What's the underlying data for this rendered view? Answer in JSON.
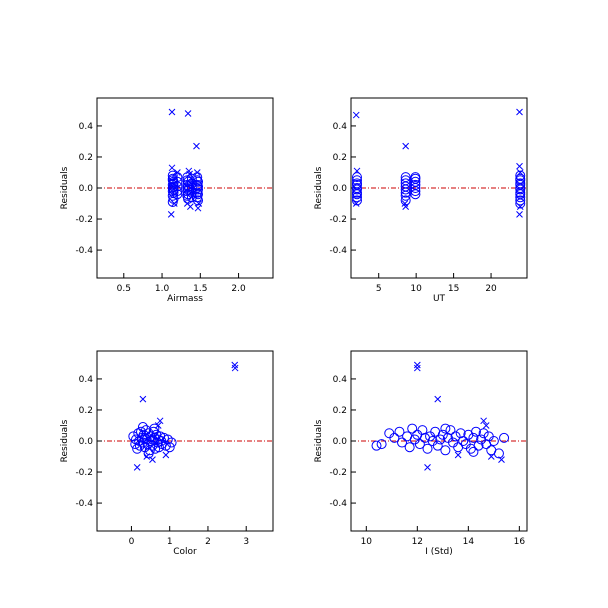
{
  "chart_data": [
    {
      "type": "scatter",
      "xlabel": "Airmass",
      "ylabel": "Residuals",
      "xlim": [
        0.15,
        2.45
      ],
      "ylim": [
        -0.58,
        0.58
      ],
      "xticks": [
        0.5,
        1.0,
        1.5,
        2.0
      ],
      "xtick_labels": [
        "0.5",
        "1.0",
        "1.5",
        "2.0"
      ],
      "yticks": [
        -0.4,
        -0.2,
        0.0,
        0.2,
        0.4
      ],
      "ytick_labels": [
        "-0.4",
        "-0.2",
        "0.0",
        "0.2",
        "0.4"
      ],
      "zero_line_color": "#cc0000",
      "marker_color": "#0000ff",
      "series": [
        {
          "marker": "circle",
          "points": [
            [
              1.14,
              0.08
            ],
            [
              1.14,
              0.06
            ],
            [
              1.14,
              0.05
            ],
            [
              1.15,
              0.04
            ],
            [
              1.15,
              0.03
            ],
            [
              1.14,
              0.02
            ],
            [
              1.15,
              0.01
            ],
            [
              1.14,
              0.0
            ],
            [
              1.15,
              -0.01
            ],
            [
              1.14,
              -0.02
            ],
            [
              1.15,
              -0.03
            ],
            [
              1.14,
              -0.05
            ],
            [
              1.15,
              -0.07
            ],
            [
              1.14,
              -0.09
            ],
            [
              1.2,
              0.07
            ],
            [
              1.2,
              0.04
            ],
            [
              1.2,
              0.01
            ],
            [
              1.2,
              -0.02
            ],
            [
              1.2,
              -0.04
            ],
            [
              1.33,
              0.07
            ],
            [
              1.33,
              0.05
            ],
            [
              1.34,
              0.04
            ],
            [
              1.33,
              0.02
            ],
            [
              1.34,
              0.01
            ],
            [
              1.33,
              0.0
            ],
            [
              1.34,
              -0.01
            ],
            [
              1.33,
              -0.02
            ],
            [
              1.34,
              -0.04
            ],
            [
              1.33,
              -0.05
            ],
            [
              1.34,
              -0.07
            ],
            [
              1.39,
              0.06
            ],
            [
              1.39,
              0.03
            ],
            [
              1.39,
              0.0
            ],
            [
              1.39,
              -0.03
            ],
            [
              1.39,
              -0.06
            ],
            [
              1.46,
              0.07
            ],
            [
              1.46,
              0.05
            ],
            [
              1.47,
              0.04
            ],
            [
              1.46,
              0.02
            ],
            [
              1.47,
              0.01
            ],
            [
              1.46,
              0.0
            ],
            [
              1.47,
              -0.01
            ],
            [
              1.46,
              -0.03
            ],
            [
              1.47,
              -0.04
            ],
            [
              1.46,
              -0.06
            ],
            [
              1.47,
              -0.08
            ]
          ]
        },
        {
          "marker": "x",
          "points": [
            [
              1.13,
              0.49
            ],
            [
              1.13,
              0.13
            ],
            [
              1.12,
              -0.17
            ],
            [
              1.2,
              0.1
            ],
            [
              1.16,
              -0.1
            ],
            [
              1.34,
              0.48
            ],
            [
              1.35,
              0.11
            ],
            [
              1.33,
              -0.1
            ],
            [
              1.37,
              -0.12
            ],
            [
              1.36,
              0.09
            ],
            [
              1.45,
              0.27
            ],
            [
              1.47,
              -0.13
            ],
            [
              1.48,
              -0.1
            ],
            [
              1.46,
              0.1
            ]
          ]
        }
      ]
    },
    {
      "type": "scatter",
      "xlabel": "UT",
      "ylabel": "Residuals",
      "xlim": [
        1.3,
        24.8
      ],
      "ylim": [
        -0.58,
        0.58
      ],
      "xticks": [
        5,
        10,
        15,
        20
      ],
      "xtick_labels": [
        "5",
        "10",
        "15",
        "20"
      ],
      "yticks": [
        -0.4,
        -0.2,
        0.0,
        0.2,
        0.4
      ],
      "ytick_labels": [
        "-0.4",
        "-0.2",
        "0.0",
        "0.2",
        "0.4"
      ],
      "zero_line_color": "#cc0000",
      "marker_color": "#0000ff",
      "series": [
        {
          "marker": "circle",
          "points": [
            [
              2.1,
              0.07
            ],
            [
              2.1,
              0.05
            ],
            [
              2.1,
              0.03
            ],
            [
              2.1,
              0.02
            ],
            [
              2.1,
              0.0
            ],
            [
              2.1,
              -0.01
            ],
            [
              2.1,
              -0.03
            ],
            [
              2.1,
              -0.04
            ],
            [
              2.1,
              -0.06
            ],
            [
              2.1,
              -0.08
            ],
            [
              8.6,
              0.07
            ],
            [
              8.6,
              0.05
            ],
            [
              8.6,
              0.03
            ],
            [
              8.6,
              0.01
            ],
            [
              8.6,
              -0.01
            ],
            [
              8.6,
              -0.03
            ],
            [
              8.6,
              -0.05
            ],
            [
              8.6,
              -0.08
            ],
            [
              9.9,
              0.07
            ],
            [
              9.9,
              0.06
            ],
            [
              9.9,
              0.04
            ],
            [
              9.9,
              0.02
            ],
            [
              9.9,
              0.0
            ],
            [
              9.9,
              -0.02
            ],
            [
              9.9,
              -0.04
            ],
            [
              23.9,
              0.08
            ],
            [
              23.9,
              0.06
            ],
            [
              23.9,
              0.05
            ],
            [
              23.9,
              0.03
            ],
            [
              23.9,
              0.02
            ],
            [
              23.9,
              0.0
            ],
            [
              23.9,
              -0.01
            ],
            [
              23.9,
              -0.03
            ],
            [
              23.9,
              -0.04
            ],
            [
              23.9,
              -0.06
            ],
            [
              23.9,
              -0.08
            ],
            [
              23.9,
              -0.1
            ]
          ]
        },
        {
          "marker": "x",
          "points": [
            [
              2.0,
              0.47
            ],
            [
              2.1,
              0.11
            ],
            [
              2.0,
              -0.1
            ],
            [
              8.6,
              0.27
            ],
            [
              8.6,
              -0.12
            ],
            [
              8.5,
              -0.1
            ],
            [
              23.8,
              0.49
            ],
            [
              23.8,
              0.14
            ],
            [
              23.8,
              -0.17
            ],
            [
              23.9,
              0.1
            ],
            [
              23.9,
              -0.12
            ]
          ]
        }
      ]
    },
    {
      "type": "scatter",
      "xlabel": "Color",
      "ylabel": "Residuals",
      "xlim": [
        -0.9,
        3.7
      ],
      "ylim": [
        -0.58,
        0.58
      ],
      "xticks": [
        0,
        1,
        2,
        3
      ],
      "xtick_labels": [
        "0",
        "1",
        "2",
        "3"
      ],
      "yticks": [
        -0.4,
        -0.2,
        0.0,
        0.2,
        0.4
      ],
      "ytick_labels": [
        "-0.4",
        "-0.2",
        "0.0",
        "0.2",
        "0.4"
      ],
      "zero_line_color": "#cc0000",
      "marker_color": "#0000ff",
      "series": [
        {
          "marker": "circle",
          "points": [
            [
              0.05,
              0.03
            ],
            [
              0.1,
              -0.02
            ],
            [
              0.12,
              0.01
            ],
            [
              0.15,
              -0.05
            ],
            [
              0.18,
              0.05
            ],
            [
              0.2,
              0.0
            ],
            [
              0.22,
              -0.03
            ],
            [
              0.25,
              0.06
            ],
            [
              0.28,
              0.02
            ],
            [
              0.3,
              -0.01
            ],
            [
              0.32,
              0.04
            ],
            [
              0.35,
              -0.04
            ],
            [
              0.38,
              0.07
            ],
            [
              0.4,
              0.01
            ],
            [
              0.42,
              -0.02
            ],
            [
              0.45,
              0.05
            ],
            [
              0.48,
              -0.06
            ],
            [
              0.5,
              0.03
            ],
            [
              0.52,
              0.0
            ],
            [
              0.55,
              -0.03
            ],
            [
              0.58,
              0.06
            ],
            [
              0.6,
              0.02
            ],
            [
              0.62,
              -0.05
            ],
            [
              0.65,
              0.04
            ],
            [
              0.68,
              -0.01
            ],
            [
              0.7,
              0.01
            ],
            [
              0.72,
              -0.04
            ],
            [
              0.75,
              0.03
            ],
            [
              0.78,
              0.0
            ],
            [
              0.8,
              -0.02
            ],
            [
              0.85,
              0.02
            ],
            [
              0.9,
              -0.03
            ],
            [
              0.95,
              0.01
            ],
            [
              1.0,
              -0.04
            ],
            [
              1.05,
              -0.01
            ],
            [
              0.3,
              0.09
            ],
            [
              0.45,
              -0.08
            ],
            [
              0.6,
              0.08
            ],
            [
              0.35,
              0.02
            ],
            [
              0.55,
              0.01
            ]
          ]
        },
        {
          "marker": "x",
          "points": [
            [
              0.3,
              0.27
            ],
            [
              0.75,
              0.13
            ],
            [
              0.15,
              -0.17
            ],
            [
              0.4,
              -0.1
            ],
            [
              0.55,
              -0.12
            ],
            [
              0.7,
              0.1
            ],
            [
              0.9,
              -0.09
            ],
            [
              2.7,
              0.49
            ],
            [
              2.71,
              0.47
            ]
          ]
        }
      ]
    },
    {
      "type": "scatter",
      "xlabel": "I (Std)",
      "ylabel": "Residuals",
      "xlim": [
        9.4,
        16.3
      ],
      "ylim": [
        -0.58,
        0.58
      ],
      "xticks": [
        10,
        12,
        14,
        16
      ],
      "xtick_labels": [
        "10",
        "12",
        "14",
        "16"
      ],
      "yticks": [
        -0.4,
        -0.2,
        0.0,
        0.2,
        0.4
      ],
      "ytick_labels": [
        "-0.4",
        "-0.2",
        "0.0",
        "0.2",
        "0.4"
      ],
      "zero_line_color": "#cc0000",
      "marker_color": "#0000ff",
      "series": [
        {
          "marker": "circle",
          "points": [
            [
              10.4,
              -0.03
            ],
            [
              10.6,
              -0.02
            ],
            [
              10.9,
              0.05
            ],
            [
              11.1,
              0.02
            ],
            [
              11.3,
              0.06
            ],
            [
              11.4,
              -0.01
            ],
            [
              11.6,
              0.03
            ],
            [
              11.7,
              -0.04
            ],
            [
              11.9,
              0.01
            ],
            [
              12.0,
              0.04
            ],
            [
              12.1,
              -0.02
            ],
            [
              12.2,
              0.07
            ],
            [
              12.3,
              0.02
            ],
            [
              12.4,
              -0.05
            ],
            [
              12.5,
              0.03
            ],
            [
              12.6,
              0.0
            ],
            [
              12.7,
              0.06
            ],
            [
              12.8,
              -0.03
            ],
            [
              12.9,
              0.01
            ],
            [
              13.0,
              0.04
            ],
            [
              13.1,
              -0.06
            ],
            [
              13.2,
              0.02
            ],
            [
              13.3,
              0.07
            ],
            [
              13.4,
              -0.01
            ],
            [
              13.5,
              0.03
            ],
            [
              13.6,
              -0.04
            ],
            [
              13.7,
              0.05
            ],
            [
              13.8,
              0.0
            ],
            [
              13.9,
              -0.02
            ],
            [
              14.0,
              0.04
            ],
            [
              14.1,
              -0.05
            ],
            [
              14.2,
              0.02
            ],
            [
              14.3,
              0.06
            ],
            [
              14.4,
              -0.03
            ],
            [
              14.5,
              0.01
            ],
            [
              14.6,
              0.05
            ],
            [
              14.7,
              -0.02
            ],
            [
              14.8,
              0.03
            ],
            [
              14.9,
              -0.06
            ],
            [
              15.0,
              0.0
            ],
            [
              15.2,
              -0.08
            ],
            [
              15.4,
              0.02
            ],
            [
              11.8,
              0.08
            ],
            [
              13.1,
              0.08
            ],
            [
              14.2,
              -0.07
            ]
          ]
        },
        {
          "marker": "x",
          "points": [
            [
              12.0,
              0.49
            ],
            [
              12.0,
              0.47
            ],
            [
              12.8,
              0.27
            ],
            [
              12.4,
              -0.17
            ],
            [
              14.6,
              0.13
            ],
            [
              14.7,
              0.1
            ],
            [
              15.3,
              -0.12
            ],
            [
              14.9,
              -0.1
            ],
            [
              13.6,
              -0.09
            ]
          ]
        }
      ]
    }
  ]
}
